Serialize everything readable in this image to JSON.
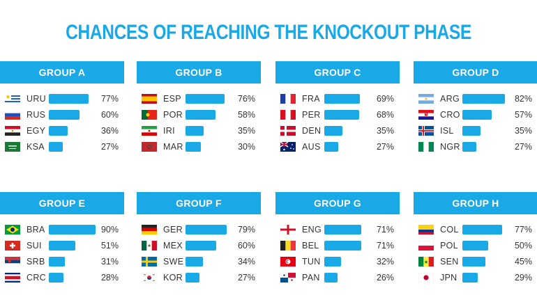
{
  "chart_data": {
    "type": "bar",
    "title": "CHANCES OF REACHING THE KNOCKOUT PHASE",
    "unit": "%",
    "groups": [
      {
        "name": "GROUP A",
        "teams": [
          {
            "code": "URU",
            "value": 77,
            "label": "77%",
            "flag": "uruguay-flag-icon"
          },
          {
            "code": "RUS",
            "value": 60,
            "label": "60%",
            "flag": "russia-flag-icon"
          },
          {
            "code": "EGY",
            "value": 36,
            "label": "36%",
            "flag": "egypt-flag-icon"
          },
          {
            "code": "KSA",
            "value": 27,
            "label": "27%",
            "flag": "saudi-arabia-flag-icon"
          }
        ]
      },
      {
        "name": "GROUP B",
        "teams": [
          {
            "code": "ESP",
            "value": 76,
            "label": "76%",
            "flag": "spain-flag-icon"
          },
          {
            "code": "POR",
            "value": 58,
            "label": "58%",
            "flag": "portugal-flag-icon"
          },
          {
            "code": "IRI",
            "value": 35,
            "label": "35%",
            "flag": "iran-flag-icon"
          },
          {
            "code": "MAR",
            "value": 30,
            "label": "30%",
            "flag": "morocco-flag-icon"
          }
        ]
      },
      {
        "name": "GROUP C",
        "teams": [
          {
            "code": "FRA",
            "value": 69,
            "label": "69%",
            "flag": "france-flag-icon"
          },
          {
            "code": "PER",
            "value": 68,
            "label": "68%",
            "flag": "peru-flag-icon"
          },
          {
            "code": "DEN",
            "value": 35,
            "label": "35%",
            "flag": "denmark-flag-icon"
          },
          {
            "code": "AUS",
            "value": 27,
            "label": "27%",
            "flag": "australia-flag-icon"
          }
        ]
      },
      {
        "name": "GROUP D",
        "teams": [
          {
            "code": "ARG",
            "value": 82,
            "label": "82%",
            "flag": "argentina-flag-icon"
          },
          {
            "code": "CRO",
            "value": 57,
            "label": "57%",
            "flag": "croatia-flag-icon"
          },
          {
            "code": "ISL",
            "value": 35,
            "label": "35%",
            "flag": "iceland-flag-icon"
          },
          {
            "code": "NGR",
            "value": 27,
            "label": "27%",
            "flag": "nigeria-flag-icon"
          }
        ]
      },
      {
        "name": "GROUP E",
        "teams": [
          {
            "code": "BRA",
            "value": 90,
            "label": "90%",
            "flag": "brazil-flag-icon"
          },
          {
            "code": "SUI",
            "value": 51,
            "label": "51%",
            "flag": "switzerland-flag-icon"
          },
          {
            "code": "SRB",
            "value": 31,
            "label": "31%",
            "flag": "serbia-flag-icon"
          },
          {
            "code": "CRC",
            "value": 28,
            "label": "28%",
            "flag": "costa-rica-flag-icon"
          }
        ]
      },
      {
        "name": "GROUP F",
        "teams": [
          {
            "code": "GER",
            "value": 79,
            "label": "79%",
            "flag": "germany-flag-icon"
          },
          {
            "code": "MEX",
            "value": 60,
            "label": "60%",
            "flag": "mexico-flag-icon"
          },
          {
            "code": "SWE",
            "value": 34,
            "label": "34%",
            "flag": "sweden-flag-icon"
          },
          {
            "code": "KOR",
            "value": 27,
            "label": "27%",
            "flag": "south-korea-flag-icon"
          }
        ]
      },
      {
        "name": "GROUP G",
        "teams": [
          {
            "code": "ENG",
            "value": 71,
            "label": "71%",
            "flag": "england-flag-icon"
          },
          {
            "code": "BEL",
            "value": 71,
            "label": "71%",
            "flag": "belgium-flag-icon"
          },
          {
            "code": "TUN",
            "value": 32,
            "label": "32%",
            "flag": "tunisia-flag-icon"
          },
          {
            "code": "PAN",
            "value": 26,
            "label": "26%",
            "flag": "panama-flag-icon"
          }
        ]
      },
      {
        "name": "GROUP H",
        "teams": [
          {
            "code": "COL",
            "value": 77,
            "label": "77%",
            "flag": "colombia-flag-icon"
          },
          {
            "code": "POL",
            "value": 50,
            "label": "50%",
            "flag": "poland-flag-icon"
          },
          {
            "code": "SEN",
            "value": 45,
            "label": "45%",
            "flag": "senegal-flag-icon"
          },
          {
            "code": "JPN",
            "value": 29,
            "label": "29%",
            "flag": "japan-flag-icon"
          }
        ]
      }
    ]
  },
  "colors": {
    "accent": "#19a9e6",
    "text": "#333333"
  }
}
